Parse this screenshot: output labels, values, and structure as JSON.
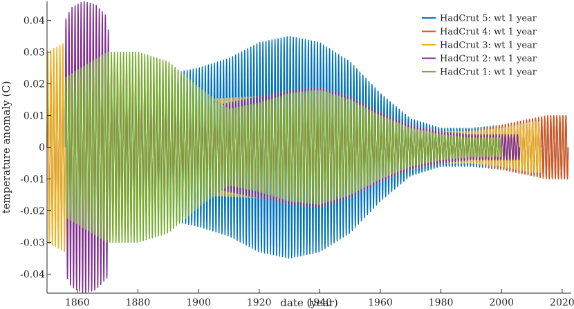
{
  "chart_data": {
    "type": "line",
    "xlabel": "date (year)",
    "ylabel": "temperature anomaly (C)",
    "xlim": [
      1850,
      2023
    ],
    "ylim": [
      -0.046,
      0.046
    ],
    "xticks": [
      1860,
      1880,
      1900,
      1920,
      1940,
      1960,
      1980,
      2000,
      2020
    ],
    "yticks": [
      -0.04,
      -0.03,
      -0.02,
      -0.01,
      0,
      0.01,
      0.02,
      0.03,
      0.04
    ],
    "ytick_labels": [
      "-0.04",
      "-0.03",
      "-0.02",
      "-0.01",
      "0",
      "0.01",
      "0.02",
      "0.03",
      "0.04"
    ],
    "grid": false,
    "legend_position": "top-right",
    "oscillation_period_years": 1,
    "series": [
      {
        "name": "HadCrut 5: wt 1 year",
        "color": "#0072BD",
        "start": 1850,
        "end": 2022,
        "envelope": {
          "years": [
            1850,
            1856,
            1860,
            1870,
            1880,
            1890,
            1900,
            1910,
            1920,
            1930,
            1940,
            1950,
            1960,
            1970,
            1980,
            1990,
            2000,
            2010,
            2022
          ],
          "amplitudes": [
            0.026,
            0.028,
            0.028,
            0.026,
            0.022,
            0.023,
            0.025,
            0.028,
            0.033,
            0.035,
            0.033,
            0.027,
            0.017,
            0.009,
            0.006,
            0.006,
            0.007,
            0.009,
            0.01
          ]
        }
      },
      {
        "name": "HadCrut 4: wt 1 year",
        "color": "#D95319",
        "start": 1850,
        "end": 2022,
        "envelope": {
          "years": [
            1850,
            1860,
            1870,
            1880,
            1900,
            1920,
            1930,
            1940,
            1950,
            1960,
            1970,
            1980,
            1990,
            2000,
            2010,
            2015,
            2022
          ],
          "amplitudes": [
            0.024,
            0.028,
            0.028,
            0.024,
            0.015,
            0.016,
            0.018,
            0.019,
            0.016,
            0.011,
            0.007,
            0.005,
            0.005,
            0.007,
            0.009,
            0.01,
            0.01
          ]
        }
      },
      {
        "name": "HadCrut 3: wt 1 year",
        "color": "#EDB120",
        "start": 1850,
        "end": 2013,
        "envelope": {
          "years": [
            1850,
            1856,
            1860,
            1870,
            1880,
            1900,
            1920,
            1930,
            1940,
            1950,
            1960,
            1970,
            1980,
            1990,
            2000,
            2010,
            2013
          ],
          "amplitudes": [
            0.03,
            0.033,
            0.03,
            0.029,
            0.025,
            0.015,
            0.016,
            0.018,
            0.019,
            0.016,
            0.011,
            0.007,
            0.005,
            0.005,
            0.006,
            0.008,
            0.008
          ]
        }
      },
      {
        "name": "HadCrut 2: wt 1 year",
        "color": "#7E2F8E",
        "start": 1856,
        "end": 2006,
        "envelope": {
          "years": [
            1856,
            1858,
            1862,
            1866,
            1870,
            1871,
            1880,
            1900,
            1920,
            1930,
            1940,
            1950,
            1960,
            1970,
            1980,
            1990,
            2000,
            2006
          ],
          "amplitudes": [
            0.04,
            0.044,
            0.046,
            0.045,
            0.041,
            0.025,
            0.022,
            0.012,
            0.016,
            0.018,
            0.019,
            0.016,
            0.011,
            0.007,
            0.005,
            0.004,
            0.004,
            0.004
          ]
        }
      },
      {
        "name": "HadCrut 1: wt 1 year",
        "color": "#77AC30",
        "start": 1856,
        "end": 2000,
        "envelope": {
          "years": [
            1856,
            1870,
            1880,
            1890,
            1900,
            1910,
            1920,
            1930,
            1940,
            1950,
            1960,
            1970,
            1980,
            1990,
            2000
          ],
          "amplitudes": [
            0.022,
            0.03,
            0.03,
            0.027,
            0.019,
            0.012,
            0.014,
            0.017,
            0.018,
            0.015,
            0.01,
            0.006,
            0.004,
            0.003,
            0.003
          ]
        }
      }
    ]
  }
}
